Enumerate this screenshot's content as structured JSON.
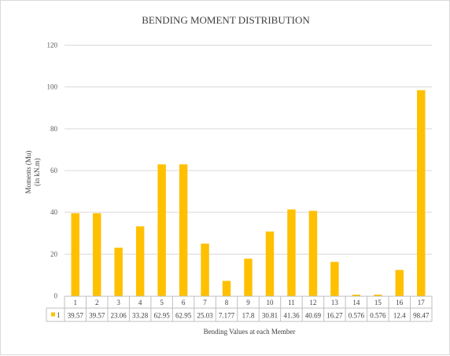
{
  "chart_data": {
    "type": "bar",
    "title": "BENDING  MOMENT DISTRIBUTION",
    "ylabel_line1": "Moments (Mu)",
    "ylabel_line2": "(in kN.m)",
    "xlabel": "Bending Values at each Member",
    "categories": [
      "1",
      "2",
      "3",
      "4",
      "5",
      "6",
      "7",
      "8",
      "9",
      "10",
      "11",
      "12",
      "13",
      "14",
      "15",
      "16",
      "17"
    ],
    "series": [
      {
        "name": "1",
        "color": "#FFC000",
        "values": [
          39.57,
          39.57,
          23.06,
          33.28,
          62.95,
          62.95,
          25.03,
          7.177,
          17.8,
          30.81,
          41.36,
          40.69,
          16.27,
          0.576,
          0.576,
          12.4,
          98.47
        ]
      }
    ],
    "ylim": [
      0,
      120
    ],
    "yticks": [
      0,
      20,
      40,
      60,
      80,
      100,
      120
    ],
    "grid": true,
    "legend": "data-table"
  }
}
